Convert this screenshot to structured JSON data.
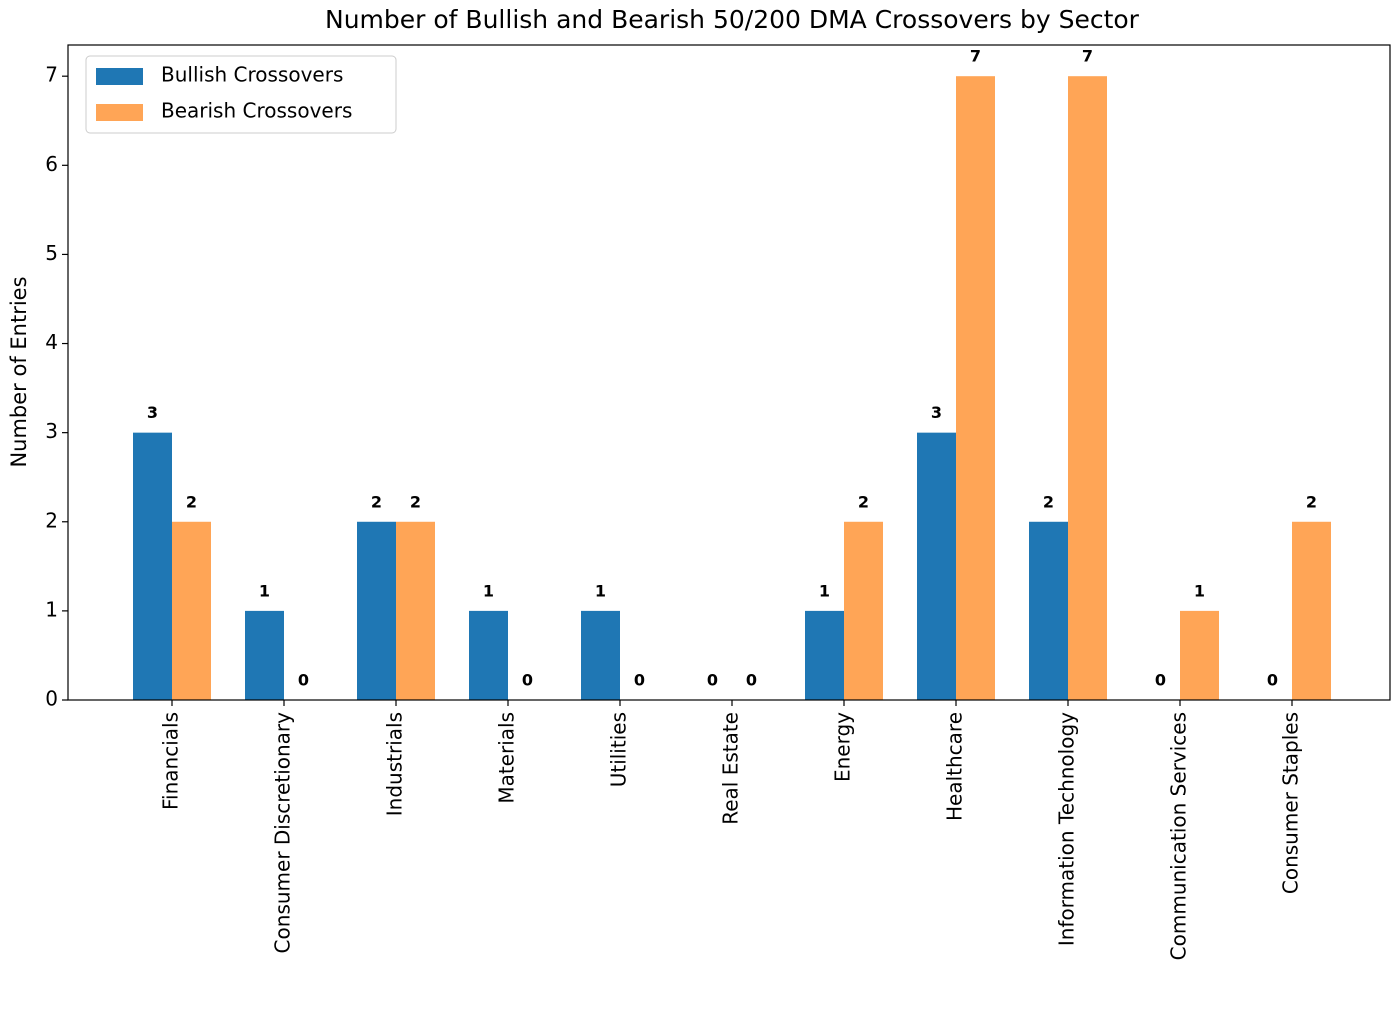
{
  "chart_data": {
    "type": "bar",
    "title": "Number of Bullish and Bearish 50/200 DMA Crossovers by Sector",
    "y_label": "Number of Entries",
    "categories": [
      "Financials",
      "Consumer Discretionary",
      "Industrials",
      "Materials",
      "Utilities",
      "Real Estate",
      "Energy",
      "Healthcare",
      "Information Technology",
      "Communication Services",
      "Consumer Staples"
    ],
    "series": [
      {
        "name": "Bullish Crossovers",
        "color": "#1f77b4",
        "values": [
          3,
          1,
          2,
          1,
          1,
          0,
          1,
          3,
          2,
          0,
          0
        ]
      },
      {
        "name": "Bearish Crossovers",
        "color": "#ffa556",
        "values": [
          2,
          0,
          2,
          0,
          0,
          0,
          2,
          7,
          7,
          1,
          2
        ]
      }
    ],
    "ylim": [
      0,
      7.35
    ],
    "yticks": [
      0,
      1,
      2,
      3,
      4,
      5,
      6,
      7
    ],
    "legend": "upper left",
    "grid": false
  }
}
